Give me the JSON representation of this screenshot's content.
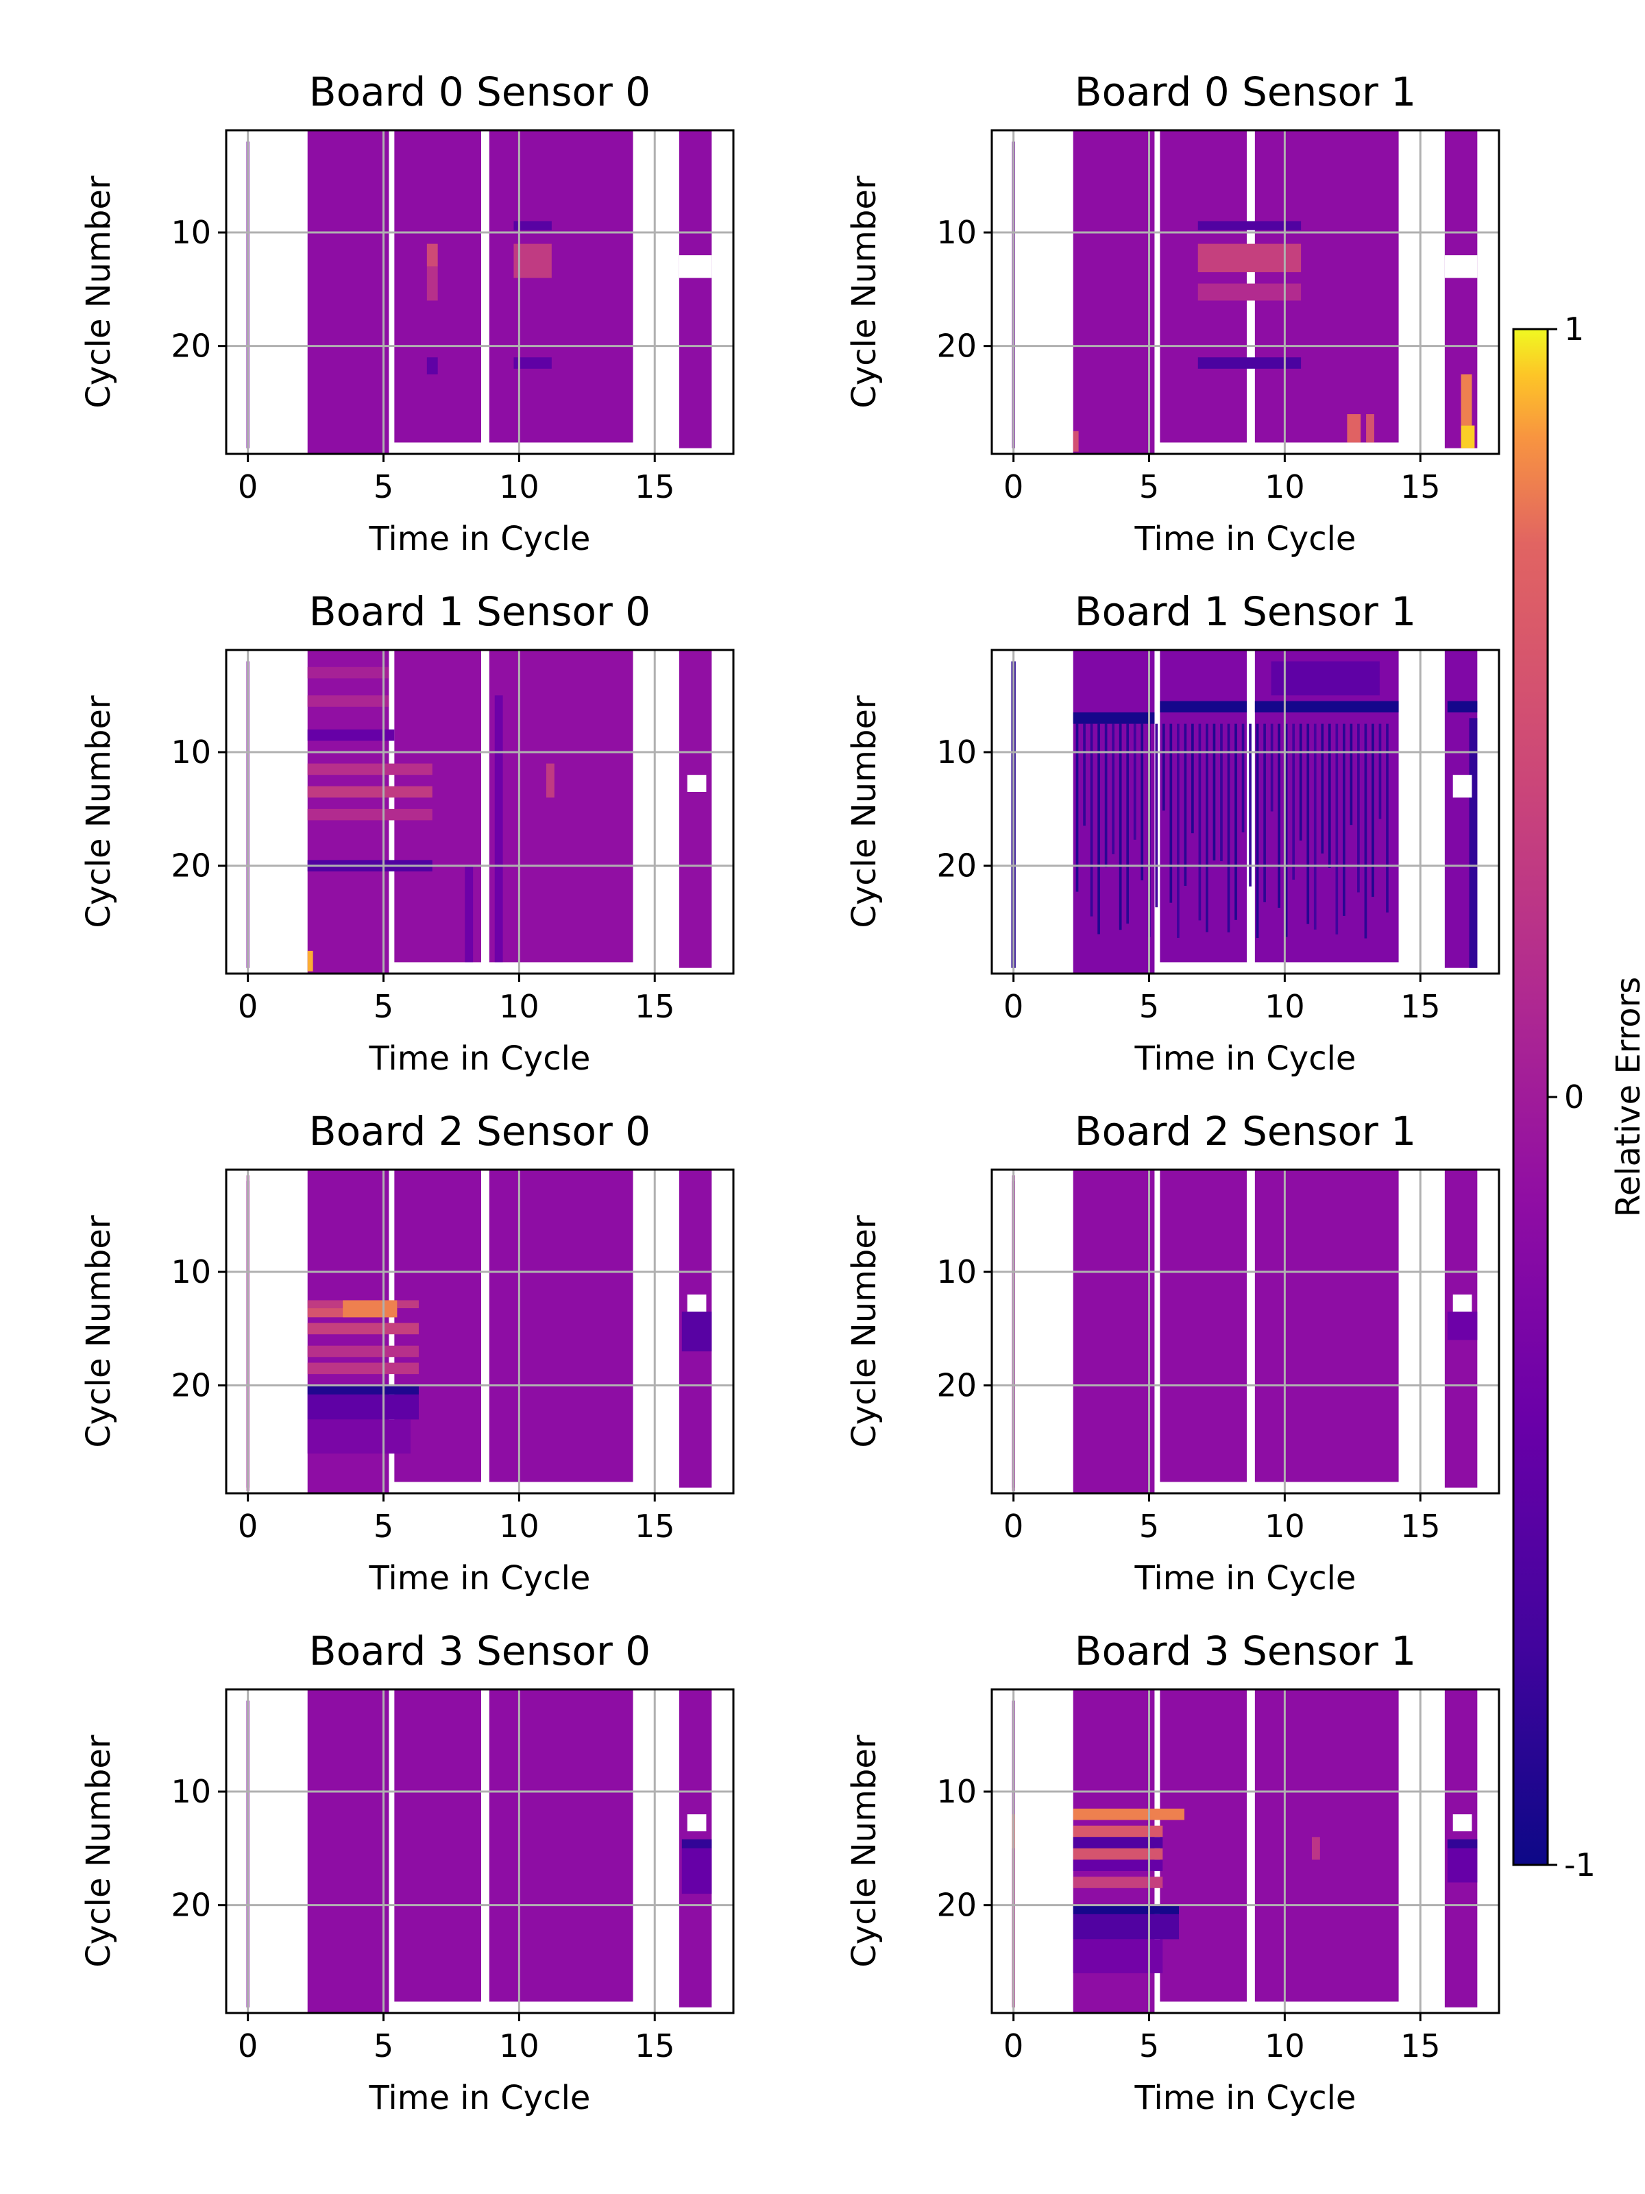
{
  "chart_data": {
    "type": "heatmap",
    "colormap": "plasma",
    "layout": {
      "rows": 4,
      "cols": 2
    },
    "colorbar": {
      "label": "Relative Errors",
      "ticks": [
        {
          "value": 1,
          "label": "1"
        },
        {
          "value": 0,
          "label": "0"
        },
        {
          "value": -1,
          "label": "-1"
        }
      ],
      "range": [
        -1,
        1
      ]
    },
    "axes": {
      "xlabel": "Time in Cycle",
      "ylabel": "Cycle Number",
      "xlim": [
        -0.8,
        17.9
      ],
      "ylim_top": 1,
      "ylim_bottom": 29.5,
      "xticks": [
        0,
        5,
        10,
        15
      ],
      "yticks": [
        10,
        20
      ],
      "grid": true
    },
    "column_blocks": [
      {
        "x0": -0.05,
        "x1": 0.05,
        "y0": 2,
        "y1": 29
      },
      {
        "x0": 2.2,
        "x1": 5.2,
        "y0": 1,
        "y1": 29.5
      },
      {
        "x0": 5.4,
        "x1": 8.6,
        "y0": 1,
        "y1": 28.5
      },
      {
        "x0": 8.9,
        "x1": 14.2,
        "y0": 1,
        "y1": 28.5
      },
      {
        "x0": 15.9,
        "x1": 17.1,
        "y0": 1,
        "y1": 29
      }
    ],
    "panels": [
      {
        "title": "Board 0 Sensor 0",
        "baseline": -0.15,
        "features": [
          {
            "x0": -0.05,
            "x1": 0.05,
            "y0": 2,
            "y1": 29,
            "v": -0.4
          },
          {
            "x0": 6.6,
            "x1": 7.0,
            "y0": 11,
            "y1": 13,
            "v": 0.45
          },
          {
            "x0": 6.6,
            "x1": 7.0,
            "y0": 13,
            "y1": 16,
            "v": 0.2
          },
          {
            "x0": 6.6,
            "x1": 7.0,
            "y0": 21,
            "y1": 22.5,
            "v": -0.5
          },
          {
            "x0": 9.8,
            "x1": 11.2,
            "y0": 9,
            "y1": 9.8,
            "v": -0.55
          },
          {
            "x0": 9.8,
            "x1": 11.2,
            "y0": 11,
            "y1": 14,
            "v": 0.3
          },
          {
            "x0": 9.8,
            "x1": 11.2,
            "y0": 21,
            "y1": 22,
            "v": -0.5
          }
        ],
        "gaps": [
          {
            "x0": 15.9,
            "x1": 17.1,
            "y0": 12,
            "y1": 14
          }
        ]
      },
      {
        "title": "Board 0 Sensor 1",
        "baseline": -0.15,
        "features": [
          {
            "x0": -0.05,
            "x1": 0.05,
            "y0": 2,
            "y1": 29,
            "v": -0.35
          },
          {
            "x0": 2.2,
            "x1": 2.4,
            "y0": 27.5,
            "y1": 29.3,
            "v": 0.5
          },
          {
            "x0": 6.8,
            "x1": 10.6,
            "y0": 9,
            "y1": 9.8,
            "v": -0.6
          },
          {
            "x0": 6.8,
            "x1": 10.6,
            "y0": 11,
            "y1": 13.5,
            "v": 0.35
          },
          {
            "x0": 6.8,
            "x1": 10.6,
            "y0": 14.5,
            "y1": 16,
            "v": 0.15
          },
          {
            "x0": 6.8,
            "x1": 10.6,
            "y0": 21,
            "y1": 22,
            "v": -0.65
          },
          {
            "x0": 12.3,
            "x1": 12.8,
            "y0": 26,
            "y1": 28.5,
            "v": 0.7
          },
          {
            "x0": 13.0,
            "x1": 13.3,
            "y0": 26,
            "y1": 28.5,
            "v": 0.55
          },
          {
            "x0": 16.5,
            "x1": 16.9,
            "y0": 22.5,
            "y1": 27,
            "v": 0.8
          },
          {
            "x0": 16.5,
            "x1": 17.0,
            "y0": 27,
            "y1": 29,
            "v": 0.95
          }
        ],
        "gaps": [
          {
            "x0": 15.9,
            "x1": 17.1,
            "y0": 12,
            "y1": 14
          }
        ]
      },
      {
        "title": "Board 1 Sensor 0",
        "baseline": -0.12,
        "features": [
          {
            "x0": -0.05,
            "x1": 0.05,
            "y0": 2,
            "y1": 29,
            "v": -0.3
          },
          {
            "x0": 2.2,
            "x1": 5.2,
            "y0": 2.5,
            "y1": 3.5,
            "v": 0.05
          },
          {
            "x0": 2.2,
            "x1": 5.2,
            "y0": 5,
            "y1": 6,
            "v": 0.1
          },
          {
            "x0": 2.2,
            "x1": 5.4,
            "y0": 8,
            "y1": 9,
            "v": -0.45
          },
          {
            "x0": 2.2,
            "x1": 6.8,
            "y0": 11,
            "y1": 12,
            "v": 0.2
          },
          {
            "x0": 2.2,
            "x1": 6.8,
            "y0": 13,
            "y1": 14,
            "v": 0.3
          },
          {
            "x0": 2.2,
            "x1": 6.8,
            "y0": 15,
            "y1": 16,
            "v": 0.15
          },
          {
            "x0": 2.2,
            "x1": 6.8,
            "y0": 19.5,
            "y1": 20.5,
            "v": -0.6
          },
          {
            "x0": 2.2,
            "x1": 2.4,
            "y0": 27.5,
            "y1": 29.3,
            "v": 0.9
          },
          {
            "x0": 8.0,
            "x1": 8.3,
            "y0": 20,
            "y1": 28.5,
            "v": -0.4
          },
          {
            "x0": 9.1,
            "x1": 9.4,
            "y0": 5,
            "y1": 28.5,
            "v": -0.4
          },
          {
            "x0": 11.0,
            "x1": 11.3,
            "y0": 11,
            "y1": 14,
            "v": 0.3
          }
        ],
        "gaps": [
          {
            "x0": 16.2,
            "x1": 16.9,
            "y0": 12,
            "y1": 13.5
          }
        ]
      },
      {
        "title": "Board 1 Sensor 1",
        "baseline": -0.25,
        "features": [
          {
            "x0": -0.08,
            "x1": 0.08,
            "y0": 2,
            "y1": 29,
            "v": -0.85
          },
          {
            "x0": 2.2,
            "x1": 5.2,
            "y0": 6.5,
            "y1": 7.5,
            "v": -0.95
          },
          {
            "x0": 5.4,
            "x1": 8.6,
            "y0": 5.5,
            "y1": 6.5,
            "v": -0.95
          },
          {
            "x0": 8.9,
            "x1": 14.2,
            "y0": 5.5,
            "y1": 6.5,
            "v": -0.95
          },
          {
            "x0": 16.0,
            "x1": 17.1,
            "y0": 5.5,
            "y1": 6.5,
            "v": -0.95
          },
          {
            "x0": 9.5,
            "x1": 13.5,
            "y0": 2,
            "y1": 5,
            "v": -0.5
          },
          {
            "x0": 16.8,
            "x1": 17.1,
            "y0": 7,
            "y1": 29,
            "v": -0.8
          }
        ],
        "streaks": {
          "x0": 2.3,
          "x1": 14.0,
          "y0": 7.5,
          "y1": 28.5,
          "count": 44,
          "v": -0.7
        },
        "gaps": [
          {
            "x0": 16.2,
            "x1": 16.9,
            "y0": 12,
            "y1": 14
          }
        ]
      },
      {
        "title": "Board 2 Sensor 0",
        "baseline": -0.15,
        "features": [
          {
            "x0": -0.05,
            "x1": 0.05,
            "y0": 1.5,
            "y1": 29.3,
            "v": 0.05
          },
          {
            "x0": 2.2,
            "x1": 6.3,
            "y0": 12.5,
            "y1": 13.2,
            "v": 0.3
          },
          {
            "x0": 2.2,
            "x1": 5.5,
            "y0": 13.2,
            "y1": 14,
            "v": 0.55
          },
          {
            "x0": 3.5,
            "x1": 5.5,
            "y0": 12.5,
            "y1": 14,
            "v": 0.8
          },
          {
            "x0": 2.2,
            "x1": 6.3,
            "y0": 14.5,
            "y1": 15.5,
            "v": 0.35
          },
          {
            "x0": 2.2,
            "x1": 6.3,
            "y0": 16.5,
            "y1": 17.5,
            "v": 0.2
          },
          {
            "x0": 2.2,
            "x1": 6.3,
            "y0": 18,
            "y1": 19,
            "v": 0.25
          },
          {
            "x0": 2.2,
            "x1": 6.3,
            "y0": 20,
            "y1": 20.8,
            "v": -0.9
          },
          {
            "x0": 2.2,
            "x1": 6.3,
            "y0": 20.8,
            "y1": 23,
            "v": -0.5
          },
          {
            "x0": 2.2,
            "x1": 6.0,
            "y0": 23,
            "y1": 26,
            "v": -0.3
          },
          {
            "x0": 16.0,
            "x1": 17.1,
            "y0": 13.5,
            "y1": 17,
            "v": -0.55
          }
        ],
        "gaps": [
          {
            "x0": 16.2,
            "x1": 16.9,
            "y0": 12,
            "y1": 13.5
          }
        ]
      },
      {
        "title": "Board 2 Sensor 1",
        "baseline": -0.15,
        "features": [
          {
            "x0": -0.05,
            "x1": 0.05,
            "y0": 1.5,
            "y1": 29.3,
            "v": 0.0
          },
          {
            "x0": 16.0,
            "x1": 17.1,
            "y0": 13.5,
            "y1": 16,
            "v": -0.4
          }
        ],
        "gaps": [
          {
            "x0": 16.2,
            "x1": 16.9,
            "y0": 12,
            "y1": 13.5
          }
        ]
      },
      {
        "title": "Board 3 Sensor 0",
        "baseline": -0.15,
        "features": [
          {
            "x0": -0.05,
            "x1": 0.05,
            "y0": 2,
            "y1": 29,
            "v": -0.25
          },
          {
            "x0": 16.0,
            "x1": 17.1,
            "y0": 14.2,
            "y1": 15,
            "v": -0.8
          },
          {
            "x0": 16.0,
            "x1": 17.1,
            "y0": 15,
            "y1": 19,
            "v": -0.45
          }
        ],
        "gaps": [
          {
            "x0": 16.2,
            "x1": 16.9,
            "y0": 12,
            "y1": 13.5
          }
        ]
      },
      {
        "title": "Board 3 Sensor 1",
        "baseline": -0.15,
        "features": [
          {
            "x0": -0.05,
            "x1": 0.05,
            "y0": 12,
            "y1": 15,
            "v": 0.75
          },
          {
            "x0": -0.05,
            "x1": 0.05,
            "y0": 15,
            "y1": 29,
            "v": 0.2
          },
          {
            "x0": 2.2,
            "x1": 6.3,
            "y0": 11.5,
            "y1": 12.5,
            "v": 0.8
          },
          {
            "x0": 2.2,
            "x1": 5.5,
            "y0": 13,
            "y1": 14,
            "v": 0.6
          },
          {
            "x0": 2.2,
            "x1": 5.5,
            "y0": 14,
            "y1": 15,
            "v": -0.6
          },
          {
            "x0": 2.2,
            "x1": 5.5,
            "y0": 15,
            "y1": 16,
            "v": 0.55
          },
          {
            "x0": 2.2,
            "x1": 5.5,
            "y0": 16,
            "y1": 17,
            "v": -0.45
          },
          {
            "x0": 2.2,
            "x1": 5.5,
            "y0": 17.5,
            "y1": 18.5,
            "v": 0.35
          },
          {
            "x0": 2.2,
            "x1": 6.1,
            "y0": 20,
            "y1": 20.8,
            "v": -0.95
          },
          {
            "x0": 2.2,
            "x1": 6.1,
            "y0": 20.8,
            "y1": 23,
            "v": -0.6
          },
          {
            "x0": 2.2,
            "x1": 5.5,
            "y0": 23,
            "y1": 26,
            "v": -0.35
          },
          {
            "x0": 11.0,
            "x1": 11.3,
            "y0": 14,
            "y1": 16,
            "v": 0.25
          },
          {
            "x0": 16.0,
            "x1": 17.1,
            "y0": 14.2,
            "y1": 15,
            "v": -0.8
          },
          {
            "x0": 16.0,
            "x1": 17.1,
            "y0": 15,
            "y1": 18,
            "v": -0.45
          }
        ],
        "gaps": [
          {
            "x0": 16.2,
            "x1": 16.9,
            "y0": 12,
            "y1": 13.5
          }
        ]
      }
    ]
  }
}
